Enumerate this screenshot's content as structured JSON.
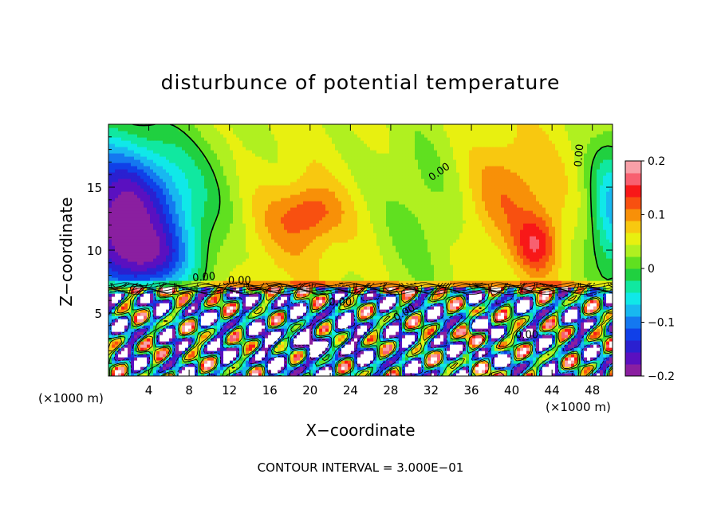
{
  "chart_data": {
    "type": "heatmap",
    "title": "disturbunce of potential temperature",
    "xlabel": "X−coordinate",
    "ylabel": "Z−coordinate",
    "x_unit_left": "(×1000 m)",
    "x_unit_right": "(×1000 m)",
    "xlim": [
      0,
      50
    ],
    "ylim": [
      0,
      20
    ],
    "x_ticks": [
      4,
      8,
      12,
      16,
      20,
      24,
      28,
      32,
      36,
      40,
      44,
      48
    ],
    "y_ticks": [
      5,
      10,
      15
    ],
    "colorbar": {
      "range": [
        -0.2,
        0.2
      ],
      "tick_values": [
        0.2,
        0.1,
        0,
        -0.1,
        -0.2
      ],
      "tick_labels": [
        "0.2",
        "0.1",
        "0",
        "−0.1",
        "−0.2"
      ]
    },
    "contour_interval_text": "CONTOUR INTERVAL = 3.000E−01",
    "contour_labels": [
      {
        "text": "0.00",
        "x": 9.5,
        "z": 7.6,
        "angle": -5
      },
      {
        "text": "0.00",
        "x": 13.0,
        "z": 7.3,
        "angle": 0
      },
      {
        "text": "0.00",
        "x": 23.0,
        "z": 5.6,
        "angle": 0
      },
      {
        "text": "0.00",
        "x": 29.5,
        "z": 4.8,
        "angle": -30
      },
      {
        "text": "0.00",
        "x": 33.0,
        "z": 16.0,
        "angle": -35
      },
      {
        "text": "0.00",
        "x": 41.5,
        "z": 3.0,
        "angle": 0
      },
      {
        "text": "0.00",
        "x": 47.0,
        "z": 17.5,
        "angle": -85
      }
    ],
    "field_summary": [
      {
        "region": "upper-left (x 0-10, z 8-20)",
        "value": -0.15
      },
      {
        "region": "upper-middle (x 10-28, z 8-20)",
        "value": 0.06
      },
      {
        "region": "upper-centre (x 28-37, z 8-20)",
        "value": 0.02
      },
      {
        "region": "upper-right (x 37-47, z 8-20)",
        "value": 0.08
      },
      {
        "region": "peak (x 41-44, z 9-12)",
        "value": 0.12
      },
      {
        "region": "lower layer (z 0-7)",
        "value": -0.1
      }
    ]
  }
}
